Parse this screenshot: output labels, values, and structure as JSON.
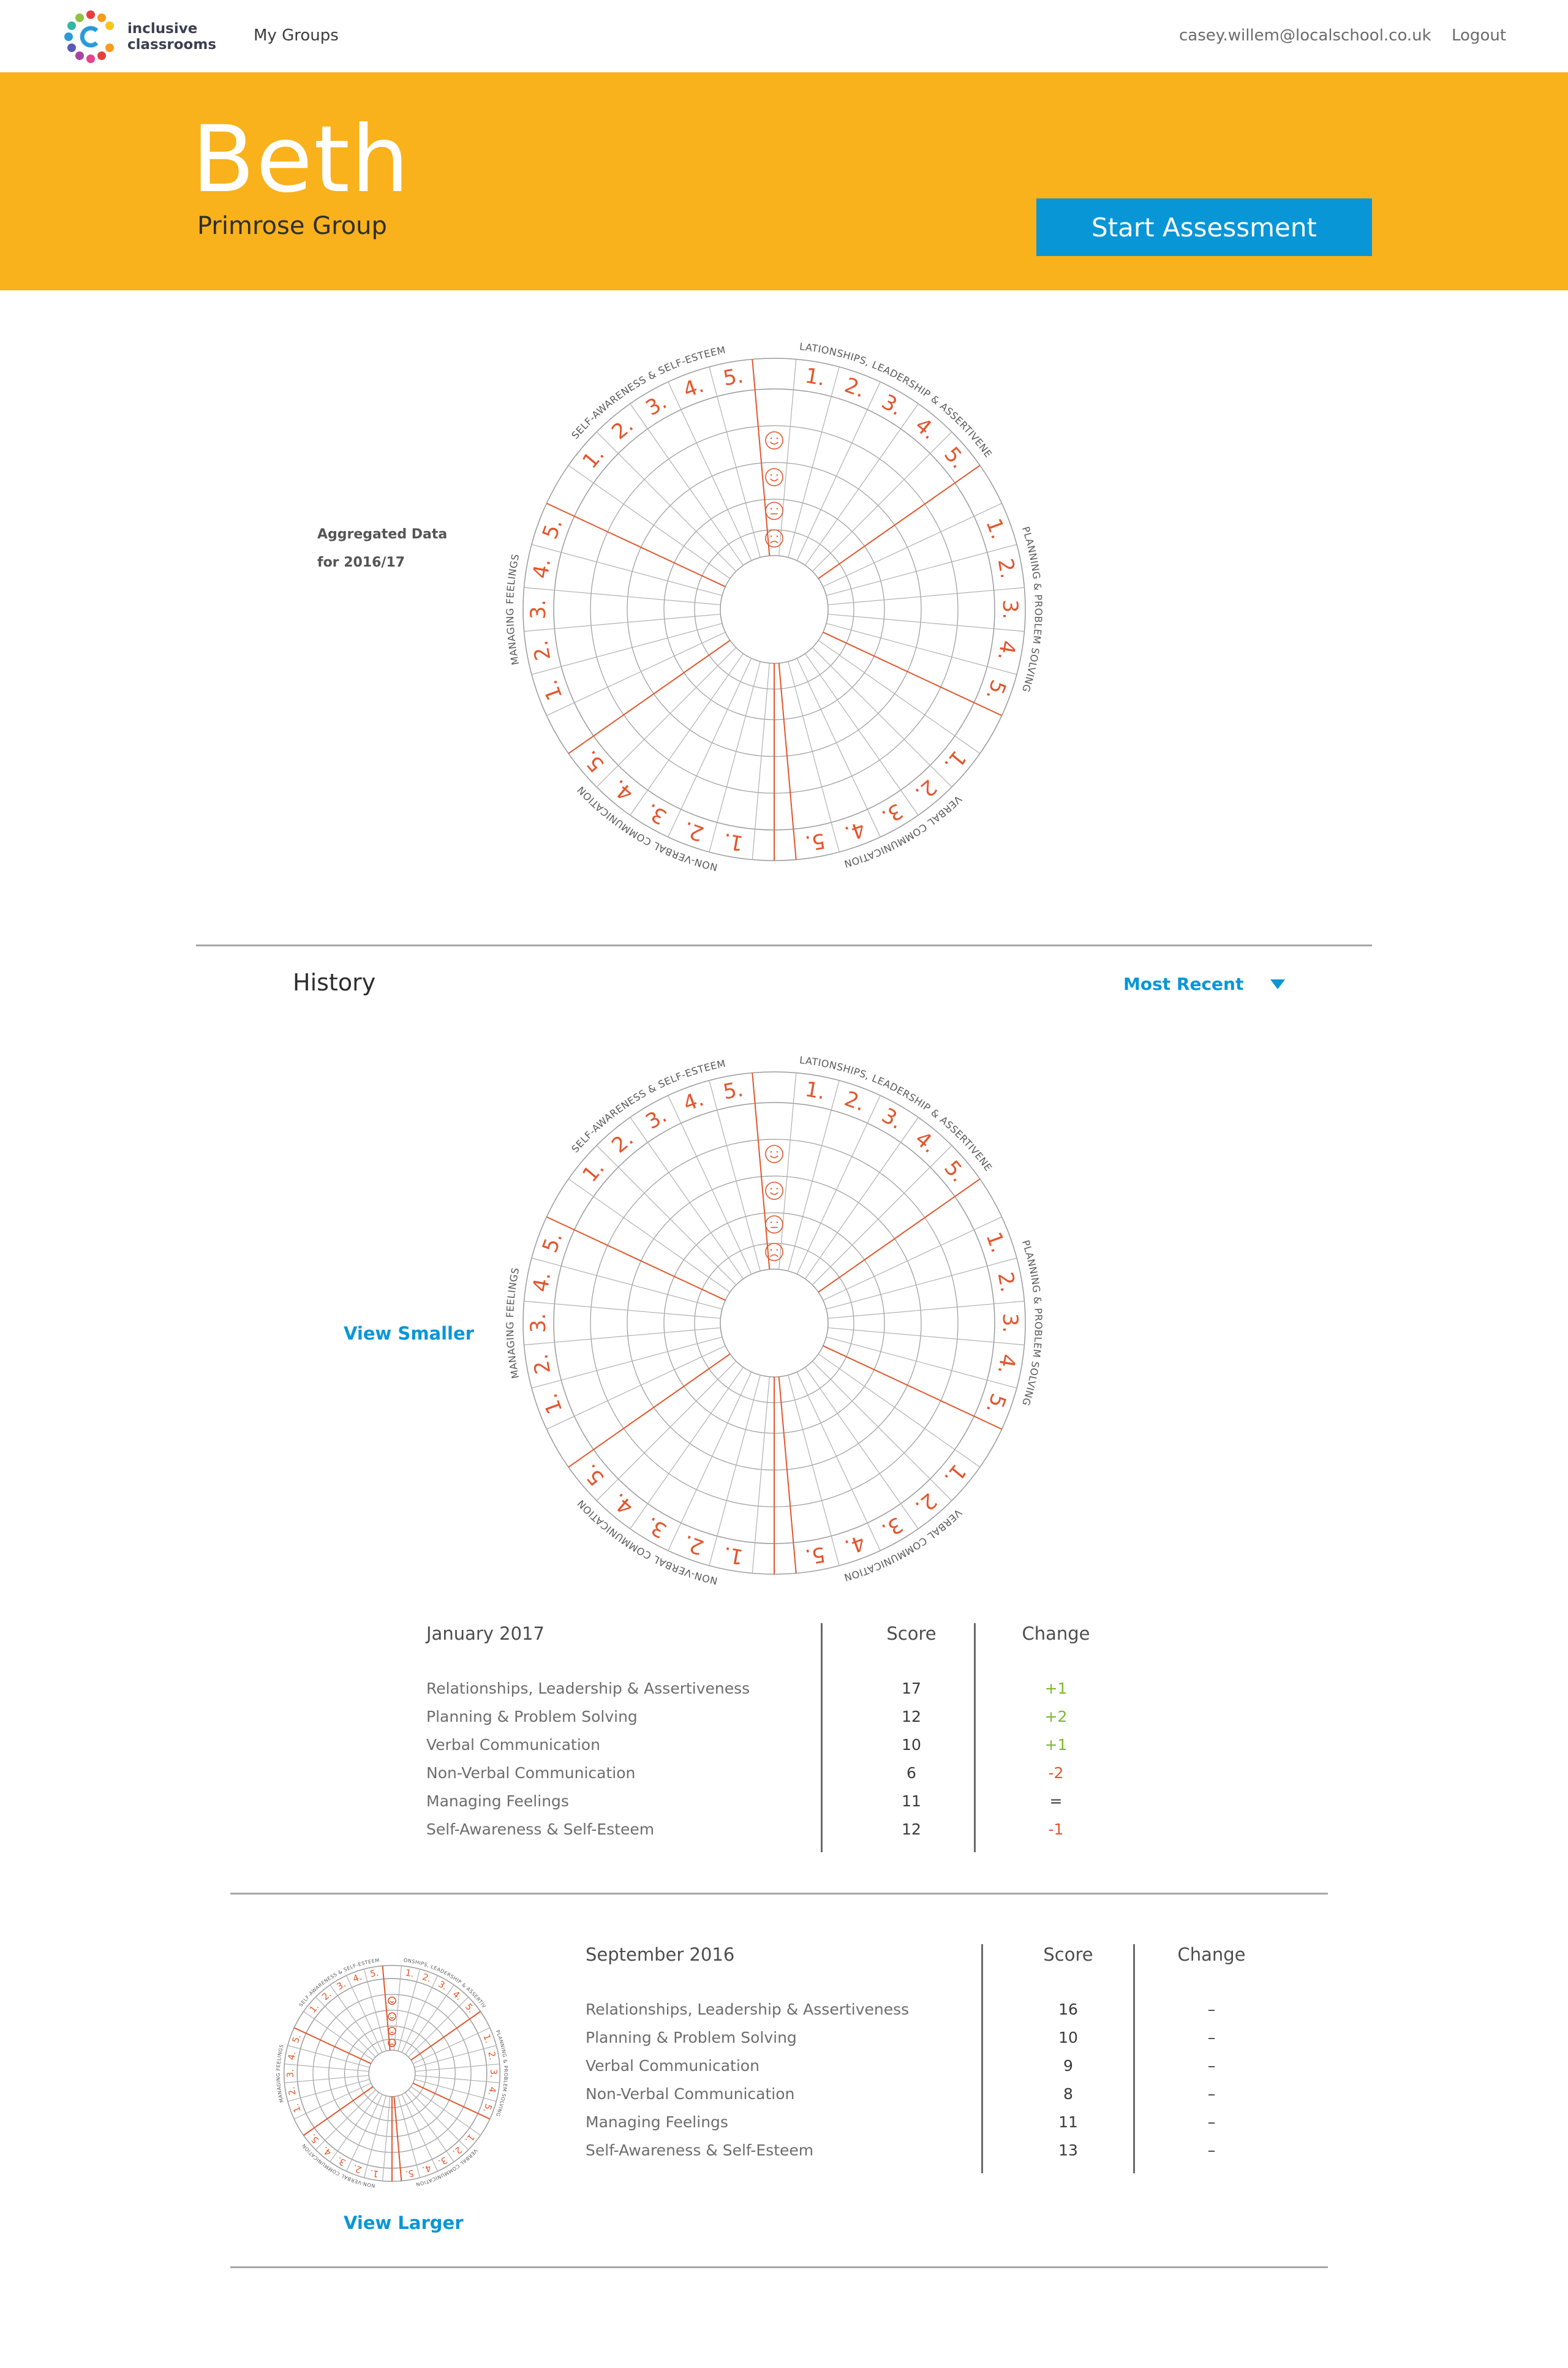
{
  "header": {
    "logo_line1": "inclusive",
    "logo_line2": "classrooms",
    "nav_my_groups": "My Groups",
    "user_email": "casey.willem@localschool.co.uk",
    "logout": "Logout"
  },
  "hero": {
    "name": "Beth",
    "group": "Primrose Group",
    "start_button": "Start Assessment"
  },
  "aggregate": {
    "label_line1": "Aggregated Data",
    "label_line2": "for 2016/17"
  },
  "wheel": {
    "sections": [
      "RELATIONSHIPS, LEADERSHIP & ASSERTIVENESS",
      "PLANNING & PROBLEM SOLVING",
      "VERBAL COMMUNICATION",
      "NON-VERBAL COMMUNICATION",
      "MANAGING FEELINGS",
      "SELF-AWARENESS & SELF-ESTEEM"
    ],
    "levels": [
      "1.",
      "2.",
      "3.",
      "4.",
      "5."
    ],
    "accent_color": "#e2562d"
  },
  "history": {
    "title": "History",
    "sort_label": "Most Recent",
    "view_smaller": "View Smaller",
    "view_larger": "View Larger",
    "score_header": "Score",
    "change_header": "Change",
    "entries": [
      {
        "date": "January 2017",
        "rows": [
          {
            "category": "Relationships, Leadership & Assertiveness",
            "score": "17",
            "change": "+1"
          },
          {
            "category": "Planning & Problem Solving",
            "score": "12",
            "change": "+2"
          },
          {
            "category": "Verbal Communication",
            "score": "10",
            "change": "+1"
          },
          {
            "category": "Non-Verbal Communication",
            "score": "6",
            "change": "-2"
          },
          {
            "category": "Managing Feelings",
            "score": "11",
            "change": "="
          },
          {
            "category": "Self-Awareness & Self-Esteem",
            "score": "12",
            "change": "-1"
          }
        ]
      },
      {
        "date": "September 2016",
        "rows": [
          {
            "category": "Relationships, Leadership & Assertiveness",
            "score": "16",
            "change": "–"
          },
          {
            "category": "Planning & Problem Solving",
            "score": "10",
            "change": "–"
          },
          {
            "category": "Verbal Communication",
            "score": "9",
            "change": "–"
          },
          {
            "category": "Non-Verbal Communication",
            "score": "8",
            "change": "–"
          },
          {
            "category": "Managing Feelings",
            "score": "11",
            "change": "–"
          },
          {
            "category": "Self-Awareness & Self-Esteem",
            "score": "13",
            "change": "–"
          }
        ]
      }
    ]
  }
}
